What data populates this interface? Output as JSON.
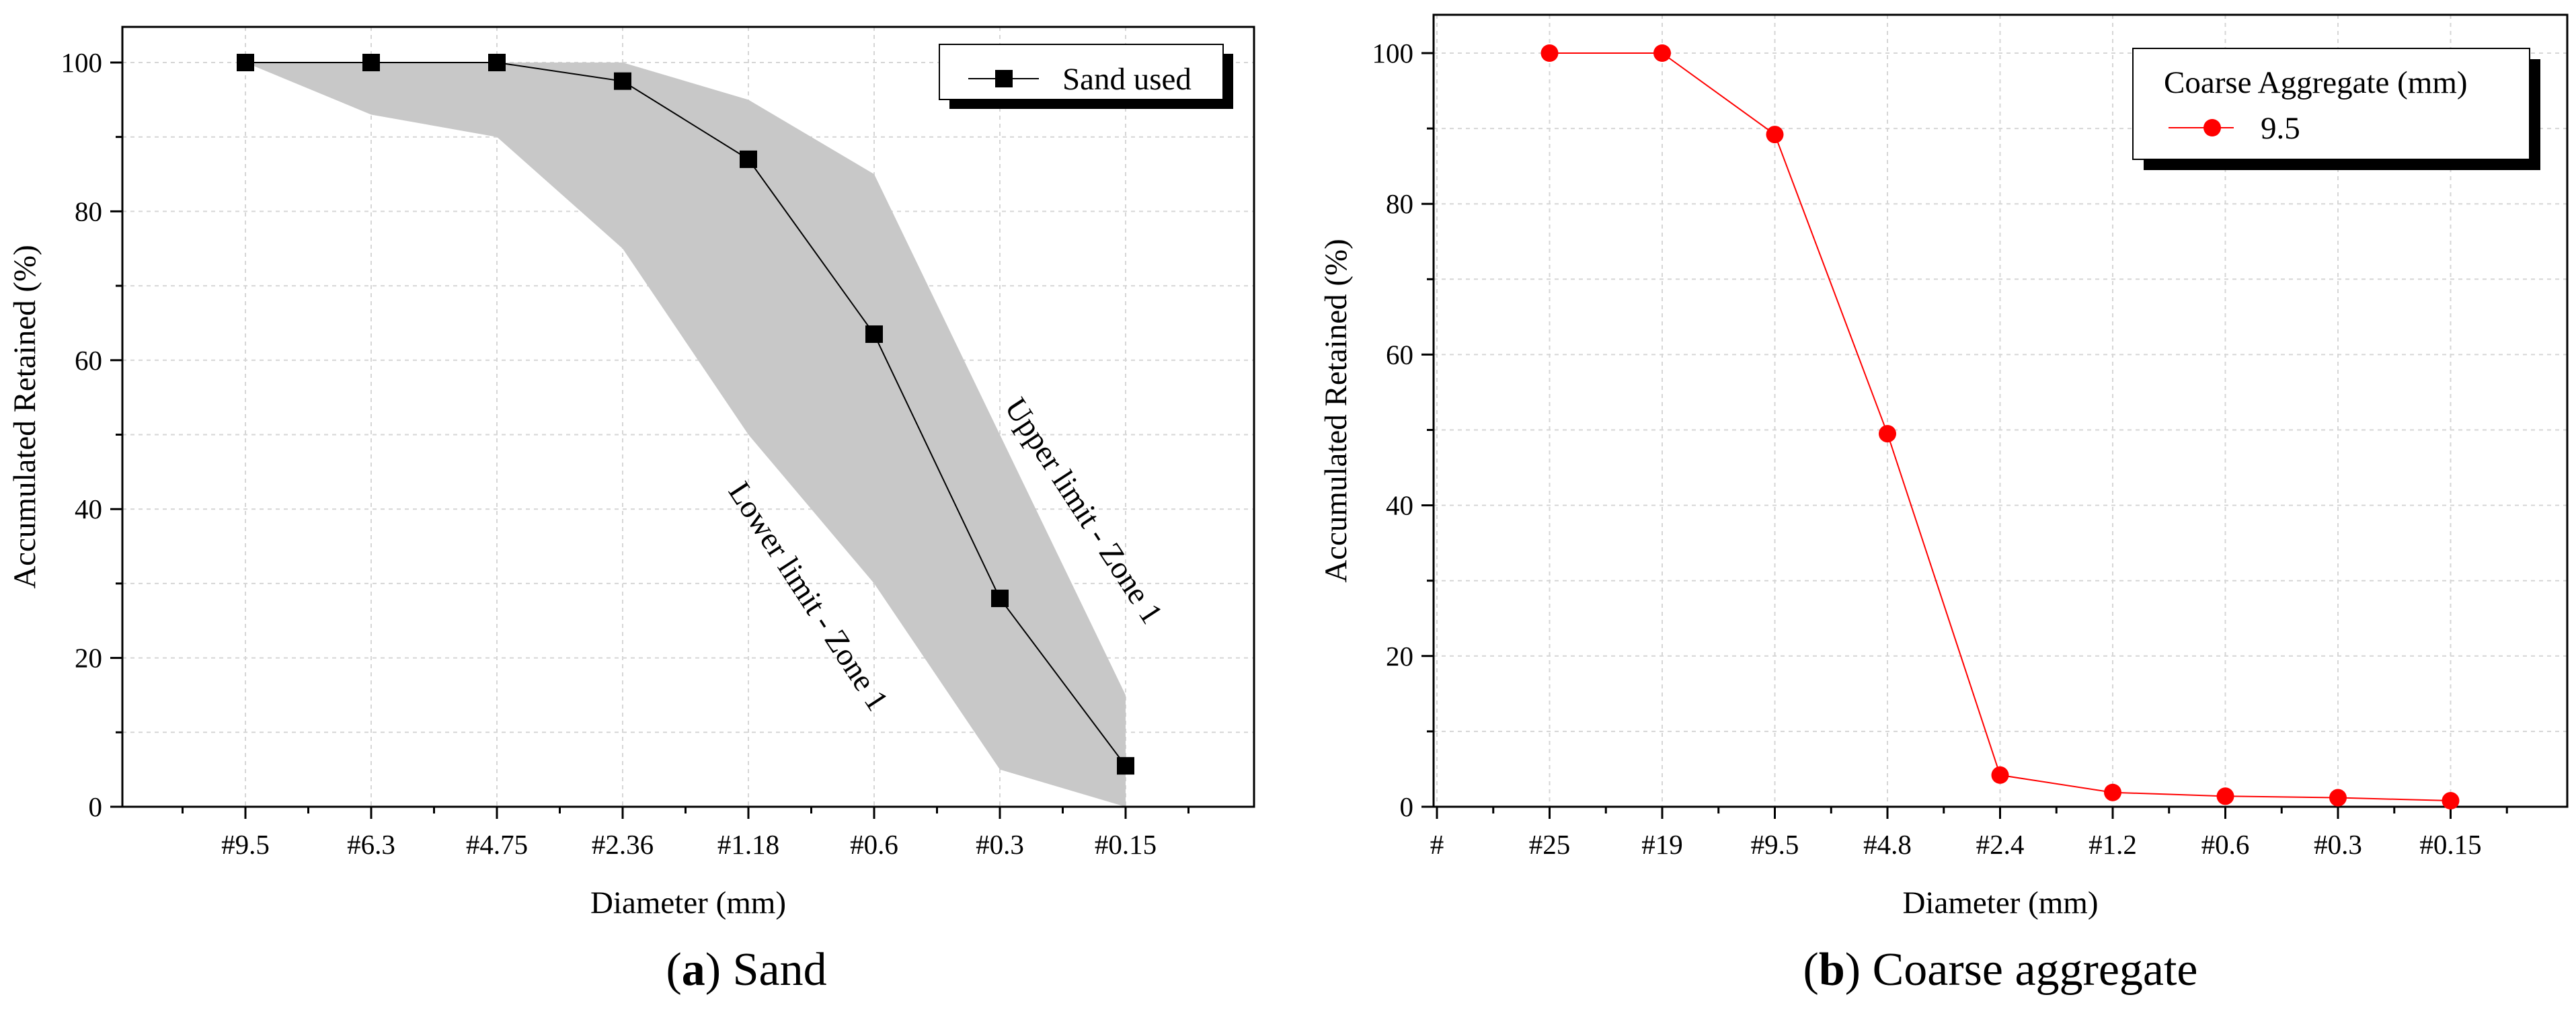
{
  "chart_data": [
    {
      "id": "sand",
      "type": "line",
      "xlabel": "Diameter (mm)",
      "ylabel": "Accumulated Retained (%)",
      "ylim": [
        0,
        105
      ],
      "yticks": [
        "0",
        "20",
        "40",
        "60",
        "80",
        "100"
      ],
      "categories": [
        "#9.5",
        "#6.3",
        "#4.75",
        "#2.36",
        "#1.18",
        "#0.6",
        "#0.3",
        "#0.15"
      ],
      "series": [
        {
          "name": "Sand used",
          "values": [
            100,
            100,
            100,
            97.5,
            87,
            63.5,
            28,
            5.5
          ],
          "color": "#000000",
          "marker": "square"
        }
      ],
      "band": {
        "upper": [
          100,
          100,
          100,
          100,
          95,
          85,
          50,
          15
        ],
        "lower": [
          100,
          93,
          90,
          75,
          50,
          30,
          5,
          0
        ],
        "color": "#c8c8c8"
      },
      "annotations": [
        "Upper limit - Zone 1",
        "Lower limit - Zone 1"
      ],
      "legend": {
        "title": "",
        "entries": [
          "Sand used"
        ],
        "placement": "top-right"
      },
      "grid": true,
      "caption_letter": "a",
      "caption_text": " Sand",
      "caption_paren_open": "(",
      "caption_paren_close": ")"
    },
    {
      "id": "coarse",
      "type": "line",
      "xlabel": "Diameter (mm)",
      "ylabel": "Accumulated Retained (%)",
      "ylim": [
        0,
        100
      ],
      "yticks": [
        "0",
        "20",
        "40",
        "60",
        "80",
        "100"
      ],
      "categories": [
        "#",
        "#25",
        "#19",
        "#9.5",
        "#4.8",
        "#2.4",
        "#1.2",
        "#0.6",
        "#0.3",
        "#0.15"
      ],
      "series": [
        {
          "name": "9.5",
          "values": [
            null,
            100,
            100,
            89.2,
            49.5,
            4.2,
            1.9,
            1.4,
            1.2,
            0.8
          ],
          "color": "#ff0000",
          "marker": "circle"
        }
      ],
      "legend": {
        "title": "Coarse Aggregate (mm)",
        "entries": [
          "9.5"
        ],
        "placement": "top-right"
      },
      "grid": true,
      "caption_letter": "b",
      "caption_text": " Coarse aggregate",
      "caption_paren_open": "(",
      "caption_paren_close": ")"
    }
  ]
}
